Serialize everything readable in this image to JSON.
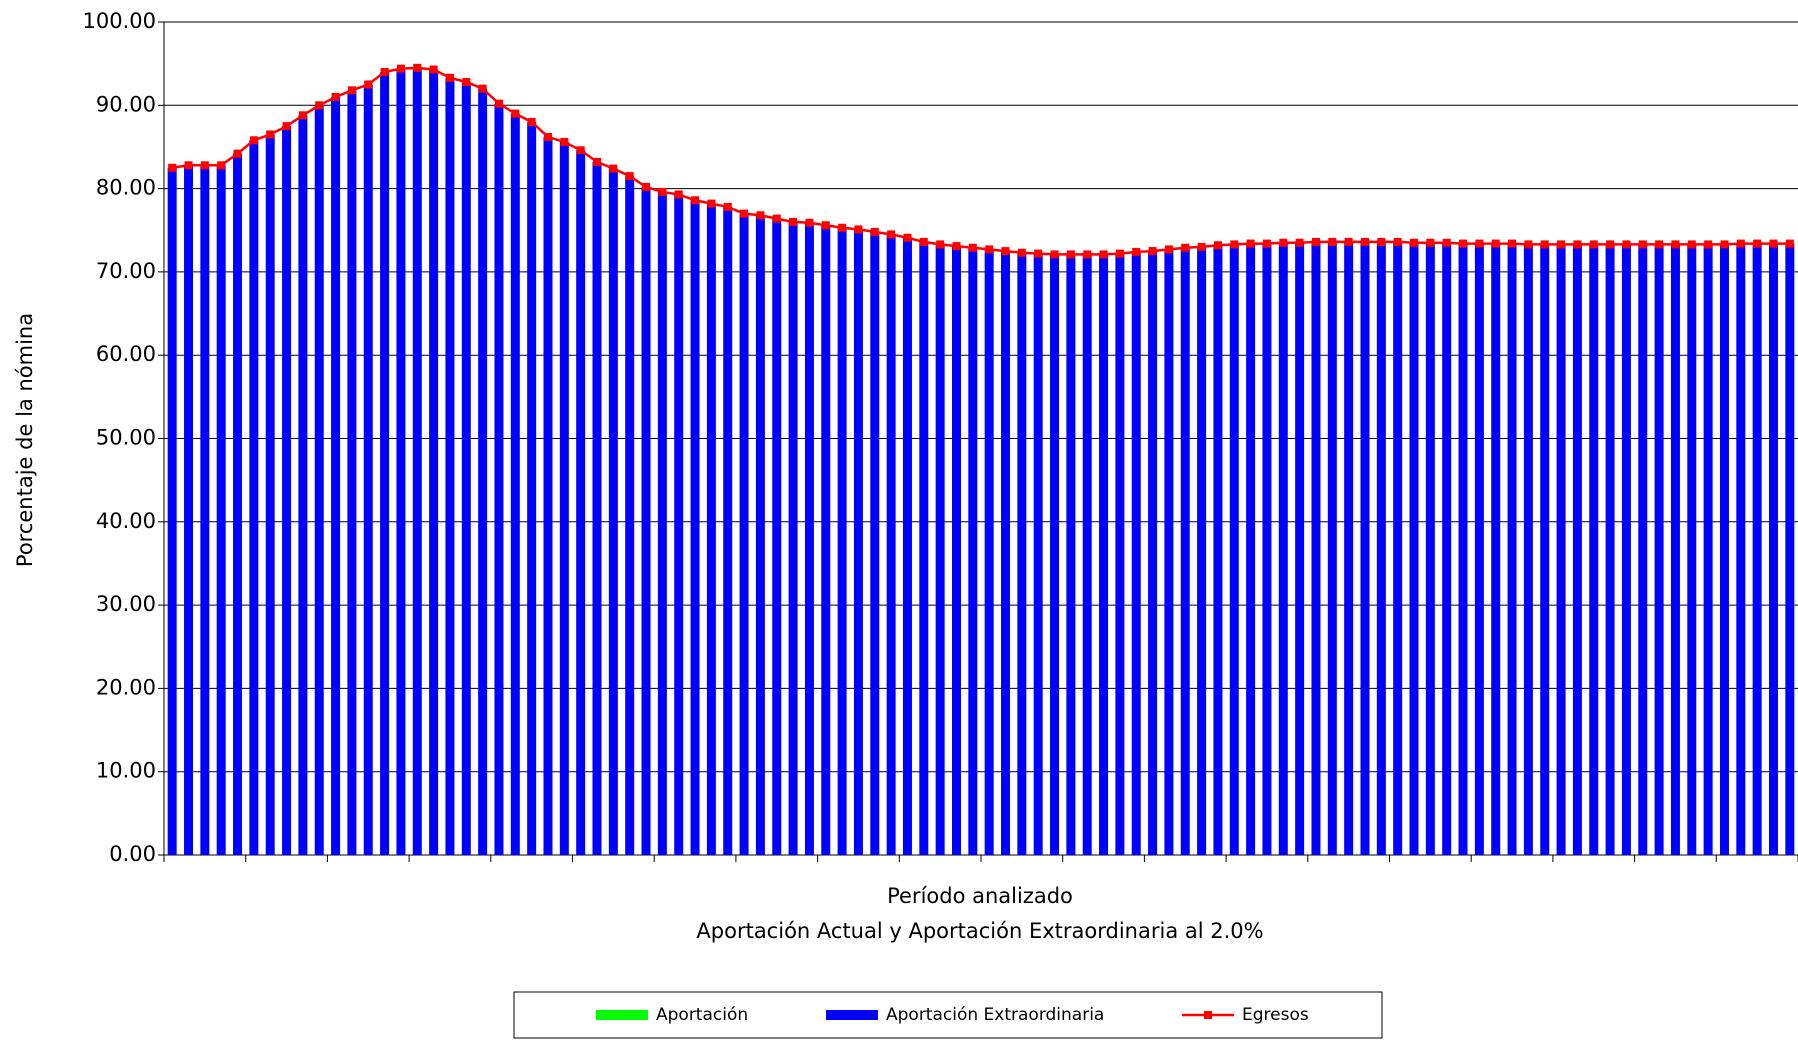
{
  "chart_data": {
    "type": "combo",
    "y_label": "Porcentaje de la nómina",
    "x_label": "Período analizado",
    "caption": "Aportación Actual y Aportación Extraordinaria al 2.0%",
    "categories": [
      null,
      null,
      null,
      null,
      null,
      null,
      null,
      null,
      null,
      null,
      null,
      null,
      null,
      null,
      null,
      null,
      null,
      null,
      null,
      null,
      null,
      null,
      null,
      null,
      null,
      null,
      null,
      null,
      null,
      null,
      null,
      null,
      null,
      null,
      null,
      null,
      null,
      null,
      null,
      null,
      null,
      null,
      null,
      null,
      null,
      null,
      null,
      null,
      null,
      null,
      null,
      null,
      null,
      null,
      null,
      null,
      null,
      null,
      null,
      null,
      null,
      null,
      null,
      null,
      null,
      null,
      null,
      null,
      null,
      null,
      null,
      null,
      null,
      null,
      null,
      null,
      null,
      null,
      null,
      null,
      null,
      null,
      null,
      null,
      null,
      null,
      null,
      null,
      null,
      null,
      null,
      null,
      null,
      null,
      null,
      null,
      null,
      null,
      null,
      null
    ],
    "series": [
      {
        "name": "Aportación",
        "type": "bar",
        "color": "#00ff00",
        "values": [
          0,
          0,
          0,
          0,
          0,
          0,
          0,
          0,
          0,
          0,
          0,
          0,
          0,
          0,
          0,
          0,
          0,
          0,
          0,
          0,
          0,
          0,
          0,
          0,
          0,
          0,
          0,
          0,
          0,
          0,
          0,
          0,
          0,
          0,
          0,
          0,
          0,
          0,
          0,
          0,
          0,
          0,
          0,
          0,
          0,
          0,
          0,
          0,
          0,
          0,
          0,
          0,
          0,
          0,
          0,
          0,
          0,
          0,
          0,
          0,
          0,
          0,
          0,
          0,
          0,
          0,
          0,
          0,
          0,
          0,
          0,
          0,
          0,
          0,
          0,
          0,
          0,
          0,
          0,
          0,
          0,
          0,
          0,
          0,
          0,
          0,
          0,
          0,
          0,
          0,
          0,
          0,
          0,
          0,
          0,
          0,
          0,
          0,
          0,
          0
        ]
      },
      {
        "name": "Aportación Extraordinaria",
        "type": "bar",
        "color": "#0000ff",
        "values": [
          82.5,
          82.8,
          82.8,
          82.8,
          84.2,
          85.8,
          86.5,
          87.5,
          88.8,
          90.0,
          91.0,
          91.8,
          92.5,
          94.0,
          94.4,
          94.5,
          94.3,
          93.3,
          92.8,
          92.0,
          90.2,
          89.0,
          88.0,
          86.2,
          85.6,
          84.6,
          83.2,
          82.4,
          81.5,
          80.2,
          79.6,
          79.3,
          78.6,
          78.2,
          77.8,
          77.0,
          76.8,
          76.4,
          76.0,
          75.9,
          75.6,
          75.3,
          75.1,
          74.8,
          74.5,
          74.1,
          73.6,
          73.3,
          73.1,
          72.9,
          72.7,
          72.5,
          72.3,
          72.2,
          72.1,
          72.1,
          72.1,
          72.1,
          72.2,
          72.4,
          72.5,
          72.7,
          72.9,
          73.0,
          73.2,
          73.3,
          73.4,
          73.4,
          73.5,
          73.5,
          73.6,
          73.6,
          73.6,
          73.6,
          73.6,
          73.6,
          73.5,
          73.5,
          73.5,
          73.4,
          73.4,
          73.4,
          73.4,
          73.3,
          73.3,
          73.3,
          73.3,
          73.3,
          73.3,
          73.3,
          73.3,
          73.3,
          73.3,
          73.3,
          73.3,
          73.3,
          73.4,
          73.4,
          73.4,
          73.4
        ]
      },
      {
        "name": "Egresos",
        "type": "line",
        "color": "#ff0000",
        "values": [
          82.5,
          82.8,
          82.8,
          82.8,
          84.2,
          85.8,
          86.5,
          87.5,
          88.8,
          90.0,
          91.0,
          91.8,
          92.5,
          94.0,
          94.4,
          94.5,
          94.3,
          93.3,
          92.8,
          92.0,
          90.2,
          89.0,
          88.0,
          86.2,
          85.6,
          84.6,
          83.2,
          82.4,
          81.5,
          80.2,
          79.6,
          79.3,
          78.6,
          78.2,
          77.8,
          77.0,
          76.8,
          76.4,
          76.0,
          75.9,
          75.6,
          75.3,
          75.1,
          74.8,
          74.5,
          74.1,
          73.6,
          73.3,
          73.1,
          72.9,
          72.7,
          72.5,
          72.3,
          72.2,
          72.1,
          72.1,
          72.1,
          72.1,
          72.2,
          72.4,
          72.5,
          72.7,
          72.9,
          73.0,
          73.2,
          73.3,
          73.4,
          73.4,
          73.5,
          73.5,
          73.6,
          73.6,
          73.6,
          73.6,
          73.6,
          73.6,
          73.5,
          73.5,
          73.5,
          73.4,
          73.4,
          73.4,
          73.4,
          73.3,
          73.3,
          73.3,
          73.3,
          73.3,
          73.3,
          73.3,
          73.3,
          73.3,
          73.3,
          73.3,
          73.3,
          73.3,
          73.4,
          73.4,
          73.4,
          73.4
        ]
      }
    ],
    "ylim": [
      0,
      100
    ],
    "yticks": [
      {
        "value": 0,
        "label": "0.00"
      },
      {
        "value": 10,
        "label": "10.00"
      },
      {
        "value": 20,
        "label": "20.00"
      },
      {
        "value": 30,
        "label": "30.00"
      },
      {
        "value": 40,
        "label": "40.00"
      },
      {
        "value": 50,
        "label": "50.00"
      },
      {
        "value": 60,
        "label": "60.00"
      },
      {
        "value": 70,
        "label": "70.00"
      },
      {
        "value": 80,
        "label": "80.00"
      },
      {
        "value": 90,
        "label": "90.00"
      },
      {
        "value": 100,
        "label": "100.00"
      }
    ],
    "grid": true,
    "stacked": true,
    "legend": "bottom"
  }
}
